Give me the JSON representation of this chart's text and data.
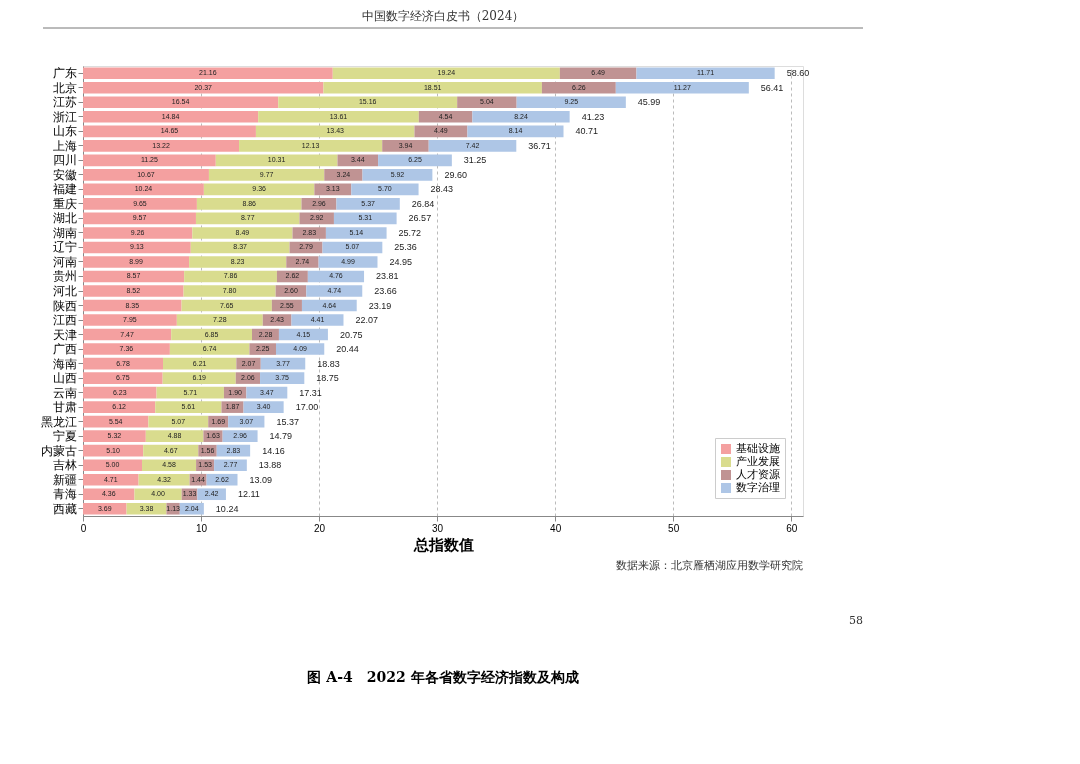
{
  "chart_data": {
    "type": "bar",
    "orientation": "horizontal",
    "stacked": true,
    "title": "图 A-4　2022 年各省数字经济指数及构成",
    "xlabel": "总指数值",
    "annotations": [
      "中国数字经济白皮书（2024）",
      "数据来源：北京雁栖湖应用数学研究院",
      "58"
    ],
    "categories": [
      "广东",
      "北京",
      "江苏",
      "浙江",
      "山东",
      "上海",
      "四川",
      "安徽",
      "福建",
      "重庆",
      "湖北",
      "湖南",
      "辽宁",
      "河南",
      "贵州",
      "河北",
      "陕西",
      "江西",
      "天津",
      "广西",
      "海南",
      "山西",
      "云南",
      "甘肃",
      "黑龙江",
      "宁夏",
      "内蒙古",
      "吉林",
      "新疆",
      "青海",
      "西藏"
    ],
    "series": [
      {
        "name": "基础设施",
        "color": "#f4a0a0",
        "values": [
          21.16,
          20.37,
          16.54,
          14.84,
          14.65,
          13.22,
          11.25,
          10.67,
          10.24,
          9.65,
          9.57,
          9.26,
          9.13,
          8.99,
          8.57,
          8.52,
          8.35,
          7.95,
          7.47,
          7.36,
          6.78,
          6.75,
          6.23,
          6.12,
          5.54,
          5.32,
          5.1,
          5.0,
          4.71,
          4.36,
          3.69
        ],
        "value_labels": [
          "21.16",
          "20.37",
          "16.54",
          "14.84",
          "14.65",
          "13.22",
          "11.25",
          "10.67",
          "10.24",
          "9.65",
          "9.57",
          "9.26",
          "9.13",
          "8.99",
          "8.57",
          "8.52",
          "8.35",
          "7.95",
          "7.47",
          "7.36",
          "6.78",
          "6.75",
          "6.23",
          "6.12",
          "5.54",
          "5.32",
          "5.10",
          "5.00",
          "4.71",
          "4.36",
          "3.69"
        ]
      },
      {
        "name": "产业发展",
        "color": "#d9dc8e",
        "values": [
          19.24,
          18.51,
          15.16,
          13.61,
          13.43,
          12.13,
          10.31,
          9.77,
          9.36,
          8.86,
          8.77,
          8.49,
          8.37,
          8.23,
          7.86,
          7.8,
          7.65,
          7.28,
          6.85,
          6.74,
          6.21,
          6.19,
          5.71,
          5.61,
          5.07,
          4.88,
          4.67,
          4.58,
          4.32,
          4.0,
          3.38
        ],
        "value_labels": [
          "19.24",
          "18.51",
          "15.16",
          "13.61",
          "13.43",
          "12.13",
          "10.31",
          "9.77",
          "9.36",
          "8.86",
          "8.77",
          "8.49",
          "8.37",
          "8.23",
          "7.86",
          "7.80",
          "7.65",
          "7.28",
          "6.85",
          "6.74",
          "6.21",
          "6.19",
          "5.71",
          "5.61",
          "5.07",
          "4.88",
          "4.67",
          "4.58",
          "4.32",
          "4.00",
          "3.38"
        ]
      },
      {
        "name": "人才资源",
        "color": "#c09393",
        "values": [
          6.49,
          6.26,
          5.04,
          4.54,
          4.49,
          3.94,
          3.44,
          3.24,
          3.13,
          2.96,
          2.92,
          2.83,
          2.79,
          2.74,
          2.62,
          2.6,
          2.55,
          2.43,
          2.28,
          2.25,
          2.07,
          2.06,
          1.9,
          1.87,
          1.69,
          1.63,
          1.56,
          1.53,
          1.44,
          1.33,
          1.13
        ],
        "value_labels": [
          "6.49",
          "6.26",
          "5.04",
          "4.54",
          "4.49",
          "3.94",
          "3.44",
          "3.24",
          "3.13",
          "2.96",
          "2.92",
          "2.83",
          "2.79",
          "2.74",
          "2.62",
          "2.60",
          "2.55",
          "2.43",
          "2.28",
          "2.25",
          "2.07",
          "2.06",
          "1.90",
          "1.87",
          "1.69",
          "1.63",
          "1.56",
          "1.53",
          "1.44",
          "1.33",
          "1.13"
        ]
      },
      {
        "name": "数字治理",
        "color": "#aec6e6",
        "values": [
          11.71,
          11.27,
          9.25,
          8.24,
          8.14,
          7.42,
          6.25,
          5.92,
          5.7,
          5.37,
          5.31,
          5.14,
          5.07,
          4.99,
          4.76,
          4.74,
          4.64,
          4.41,
          4.15,
          4.09,
          3.77,
          3.75,
          3.47,
          3.4,
          3.07,
          2.96,
          2.83,
          2.77,
          2.62,
          2.42,
          2.04
        ],
        "value_labels": [
          "11.71",
          "11.27",
          "9.25",
          "8.24",
          "8.14",
          "7.42",
          "6.25",
          "5.92",
          "5.70",
          "5.37",
          "5.31",
          "5.14",
          "5.07",
          "4.99",
          "4.76",
          "4.74",
          "4.64",
          "4.41",
          "4.15",
          "4.09",
          "3.77",
          "3.75",
          "3.47",
          "3.40",
          "3.07",
          "2.96",
          "2.83",
          "2.77",
          "2.62",
          "2.42",
          "2.04"
        ]
      }
    ],
    "totals": [
      "58.60",
      "56.41",
      "45.99",
      "41.23",
      "40.71",
      "36.71",
      "31.25",
      "29.60",
      "28.43",
      "26.84",
      "26.57",
      "25.72",
      "25.36",
      "24.95",
      "23.81",
      "23.66",
      "23.19",
      "22.07",
      "20.75",
      "20.44",
      "18.83",
      "18.75",
      "17.31",
      "17.00",
      "15.37",
      "14.79",
      "14.16",
      "13.88",
      "13.09",
      "12.11",
      "10.24"
    ],
    "xlim": [
      0,
      61
    ],
    "xticks": [
      0,
      10,
      20,
      30,
      40,
      50,
      60
    ],
    "grid": "x",
    "legend": "bottom right"
  }
}
